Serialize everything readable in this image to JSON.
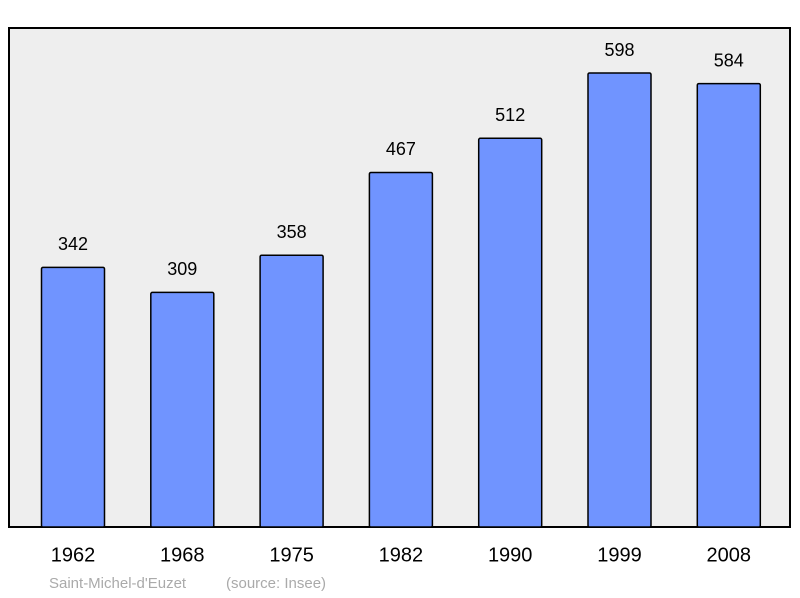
{
  "chart_data": {
    "type": "bar",
    "categories": [
      "1962",
      "1968",
      "1975",
      "1982",
      "1990",
      "1999",
      "2008"
    ],
    "values": [
      342,
      309,
      358,
      467,
      512,
      598,
      584
    ],
    "color": "#7094ff",
    "caption": "Saint-Michel-d'Euzet",
    "source": "(source: Insee)"
  }
}
